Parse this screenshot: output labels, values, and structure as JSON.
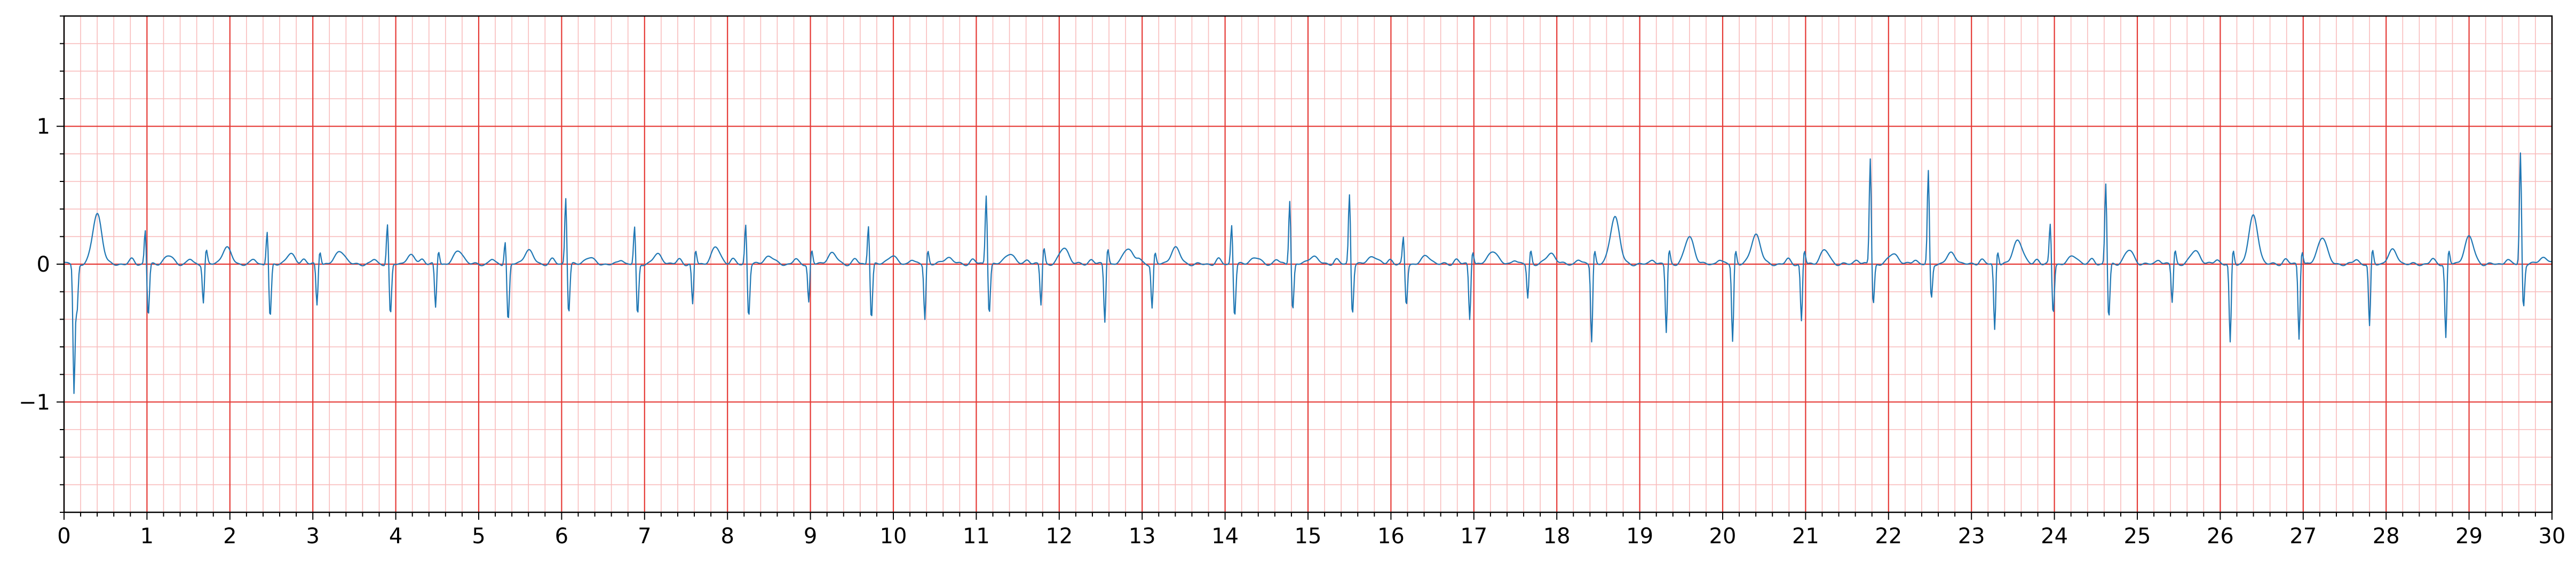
{
  "chart_data": {
    "type": "line",
    "title": "",
    "xlabel": "",
    "ylabel": "",
    "xlim": [
      0,
      30
    ],
    "ylim": [
      -1.8,
      1.8
    ],
    "grid": {
      "on": true,
      "major_x_step": 1,
      "major_y_step": 1,
      "minor_x_step": 0.2,
      "minor_y_step": 0.2,
      "major_color": "#e53935",
      "minor_color": "#f8bcbc"
    },
    "x_ticks": [
      0,
      1,
      2,
      3,
      4,
      5,
      6,
      7,
      8,
      9,
      10,
      11,
      12,
      13,
      14,
      15,
      16,
      17,
      18,
      19,
      20,
      21,
      22,
      23,
      24,
      25,
      26,
      27,
      28,
      29,
      30
    ],
    "x_tick_labels": [
      "0",
      "1",
      "2",
      "3",
      "4",
      "5",
      "6",
      "7",
      "8",
      "9",
      "10",
      "11",
      "12",
      "13",
      "14",
      "15",
      "16",
      "17",
      "18",
      "19",
      "20",
      "21",
      "22",
      "23",
      "24",
      "25",
      "26",
      "27",
      "28",
      "29",
      "30"
    ],
    "y_ticks": [
      -1,
      0,
      1
    ],
    "y_tick_labels": [
      "−1",
      "0",
      "1"
    ],
    "series": [
      {
        "color": "#1f77b4",
        "sample_rate_hz": 100,
        "beats": [
          {
            "t": 0.12,
            "r": -0.92,
            "s": -0.35,
            "tw": 0.37
          },
          {
            "t": 0.98,
            "r": 0.26,
            "s": -0.38,
            "tw": 0.06
          },
          {
            "t": 1.68,
            "r": -0.28,
            "s": 0.1,
            "tw": 0.12
          },
          {
            "t": 2.45,
            "r": 0.25,
            "s": -0.4,
            "tw": 0.07
          },
          {
            "t": 3.05,
            "r": -0.3,
            "s": 0.1,
            "tw": 0.1
          },
          {
            "t": 3.9,
            "r": 0.3,
            "s": -0.38,
            "tw": 0.06
          },
          {
            "t": 4.48,
            "r": -0.32,
            "s": 0.1,
            "tw": 0.1
          },
          {
            "t": 5.32,
            "r": 0.18,
            "s": -0.42,
            "tw": 0.1
          },
          {
            "t": 6.05,
            "r": 0.5,
            "s": -0.36,
            "tw": 0.05
          },
          {
            "t": 6.88,
            "r": 0.28,
            "s": -0.38,
            "tw": 0.07
          },
          {
            "t": 7.58,
            "r": -0.3,
            "s": 0.1,
            "tw": 0.12
          },
          {
            "t": 8.22,
            "r": 0.3,
            "s": -0.38,
            "tw": 0.06
          },
          {
            "t": 8.98,
            "r": -0.28,
            "s": 0.1,
            "tw": 0.08
          },
          {
            "t": 9.7,
            "r": 0.3,
            "s": -0.4,
            "tw": 0.06
          },
          {
            "t": 10.38,
            "r": -0.4,
            "s": 0.1,
            "tw": 0.05
          },
          {
            "t": 11.12,
            "r": 0.52,
            "s": -0.36,
            "tw": 0.08
          },
          {
            "t": 11.78,
            "r": -0.3,
            "s": 0.12,
            "tw": 0.12
          },
          {
            "t": 12.55,
            "r": -0.42,
            "s": 0.12,
            "tw": 0.12
          },
          {
            "t": 13.12,
            "r": -0.32,
            "s": 0.08,
            "tw": 0.12
          },
          {
            "t": 14.08,
            "r": 0.3,
            "s": -0.38,
            "tw": 0.05
          },
          {
            "t": 14.78,
            "r": 0.48,
            "s": -0.34,
            "tw": 0.06
          },
          {
            "t": 15.5,
            "r": 0.52,
            "s": -0.36,
            "tw": 0.06
          },
          {
            "t": 16.15,
            "r": 0.2,
            "s": -0.3,
            "tw": 0.06
          },
          {
            "t": 16.95,
            "r": -0.4,
            "s": 0.1,
            "tw": 0.1
          },
          {
            "t": 17.65,
            "r": -0.25,
            "s": 0.1,
            "tw": 0.08
          },
          {
            "t": 18.42,
            "r": -0.56,
            "s": 0.1,
            "tw": 0.35
          },
          {
            "t": 19.32,
            "r": -0.5,
            "s": 0.1,
            "tw": 0.2
          },
          {
            "t": 20.12,
            "r": -0.56,
            "s": 0.1,
            "tw": 0.22
          },
          {
            "t": 20.95,
            "r": -0.42,
            "s": 0.1,
            "tw": 0.1
          },
          {
            "t": 21.78,
            "r": 0.78,
            "s": -0.3,
            "tw": 0.08
          },
          {
            "t": 22.48,
            "r": 0.68,
            "s": -0.26,
            "tw": 0.08
          },
          {
            "t": 23.28,
            "r": -0.48,
            "s": 0.1,
            "tw": 0.18
          },
          {
            "t": 23.95,
            "r": 0.3,
            "s": -0.36,
            "tw": 0.06
          },
          {
            "t": 24.62,
            "r": 0.6,
            "s": -0.4,
            "tw": 0.1
          },
          {
            "t": 25.42,
            "r": -0.28,
            "s": 0.1,
            "tw": 0.1
          },
          {
            "t": 26.12,
            "r": -0.58,
            "s": 0.1,
            "tw": 0.35
          },
          {
            "t": 26.95,
            "r": -0.54,
            "s": 0.1,
            "tw": 0.2
          },
          {
            "t": 27.8,
            "r": -0.46,
            "s": 0.1,
            "tw": 0.1
          },
          {
            "t": 28.72,
            "r": -0.54,
            "s": 0.1,
            "tw": 0.2
          },
          {
            "t": 29.62,
            "r": 0.82,
            "s": -0.32,
            "tw": 0.05
          }
        ]
      }
    ]
  }
}
